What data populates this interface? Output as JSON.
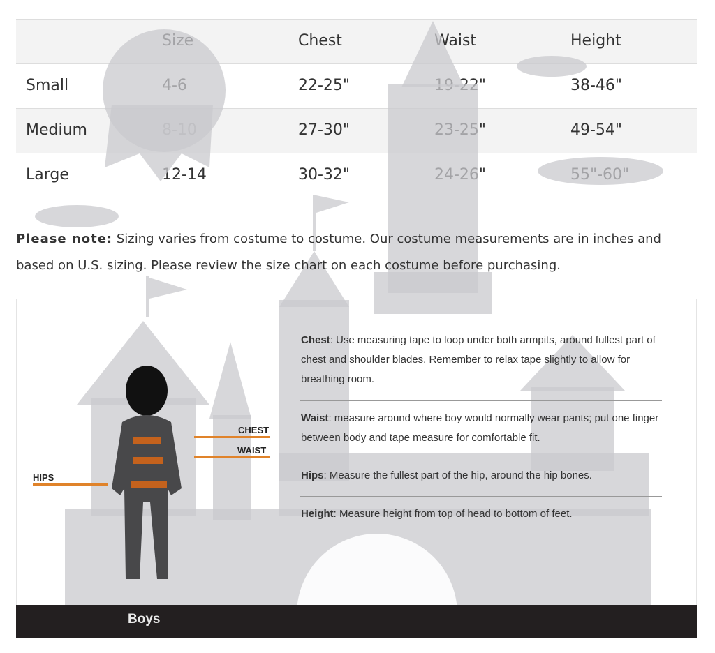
{
  "table": {
    "headers": [
      "",
      "Size",
      "Chest",
      "Waist",
      "Height"
    ],
    "rows": [
      [
        "Small",
        "4-6",
        "22-25\"",
        "19-22\"",
        "38-46\""
      ],
      [
        "Medium",
        "8-10",
        "27-30\"",
        "23-25\"",
        "49-54\""
      ],
      [
        "Large",
        "12-14",
        "30-32\"",
        "24-26\"",
        "55\"-60\""
      ]
    ]
  },
  "note": {
    "label": "Please note:",
    "text": " Sizing varies from costume to costume. Our costume measurements are in inches and based on U.S. sizing. Please review the size chart on each costume before purchasing."
  },
  "diagram": {
    "labels": {
      "chest": "CHEST",
      "waist": "WAIST",
      "hips": "HIPS"
    },
    "footer": "Boys",
    "accent": "#e0832a",
    "descriptions": [
      {
        "term": "Chest",
        "text": ": Use measuring tape to loop under both armpits, around fullest part of chest and shoulder blades. Remember to relax tape slightly to allow for breathing room."
      },
      {
        "term": "Waist",
        "text": ": measure around where boy would normally wear pants; put one finger between body and tape measure for comfortable fit."
      },
      {
        "term": "Hips",
        "text": ": Measure the fullest part of the hip, around the hip bones."
      },
      {
        "term": "Height",
        "text": ": Measure height from top of head to bottom of feet."
      }
    ]
  }
}
